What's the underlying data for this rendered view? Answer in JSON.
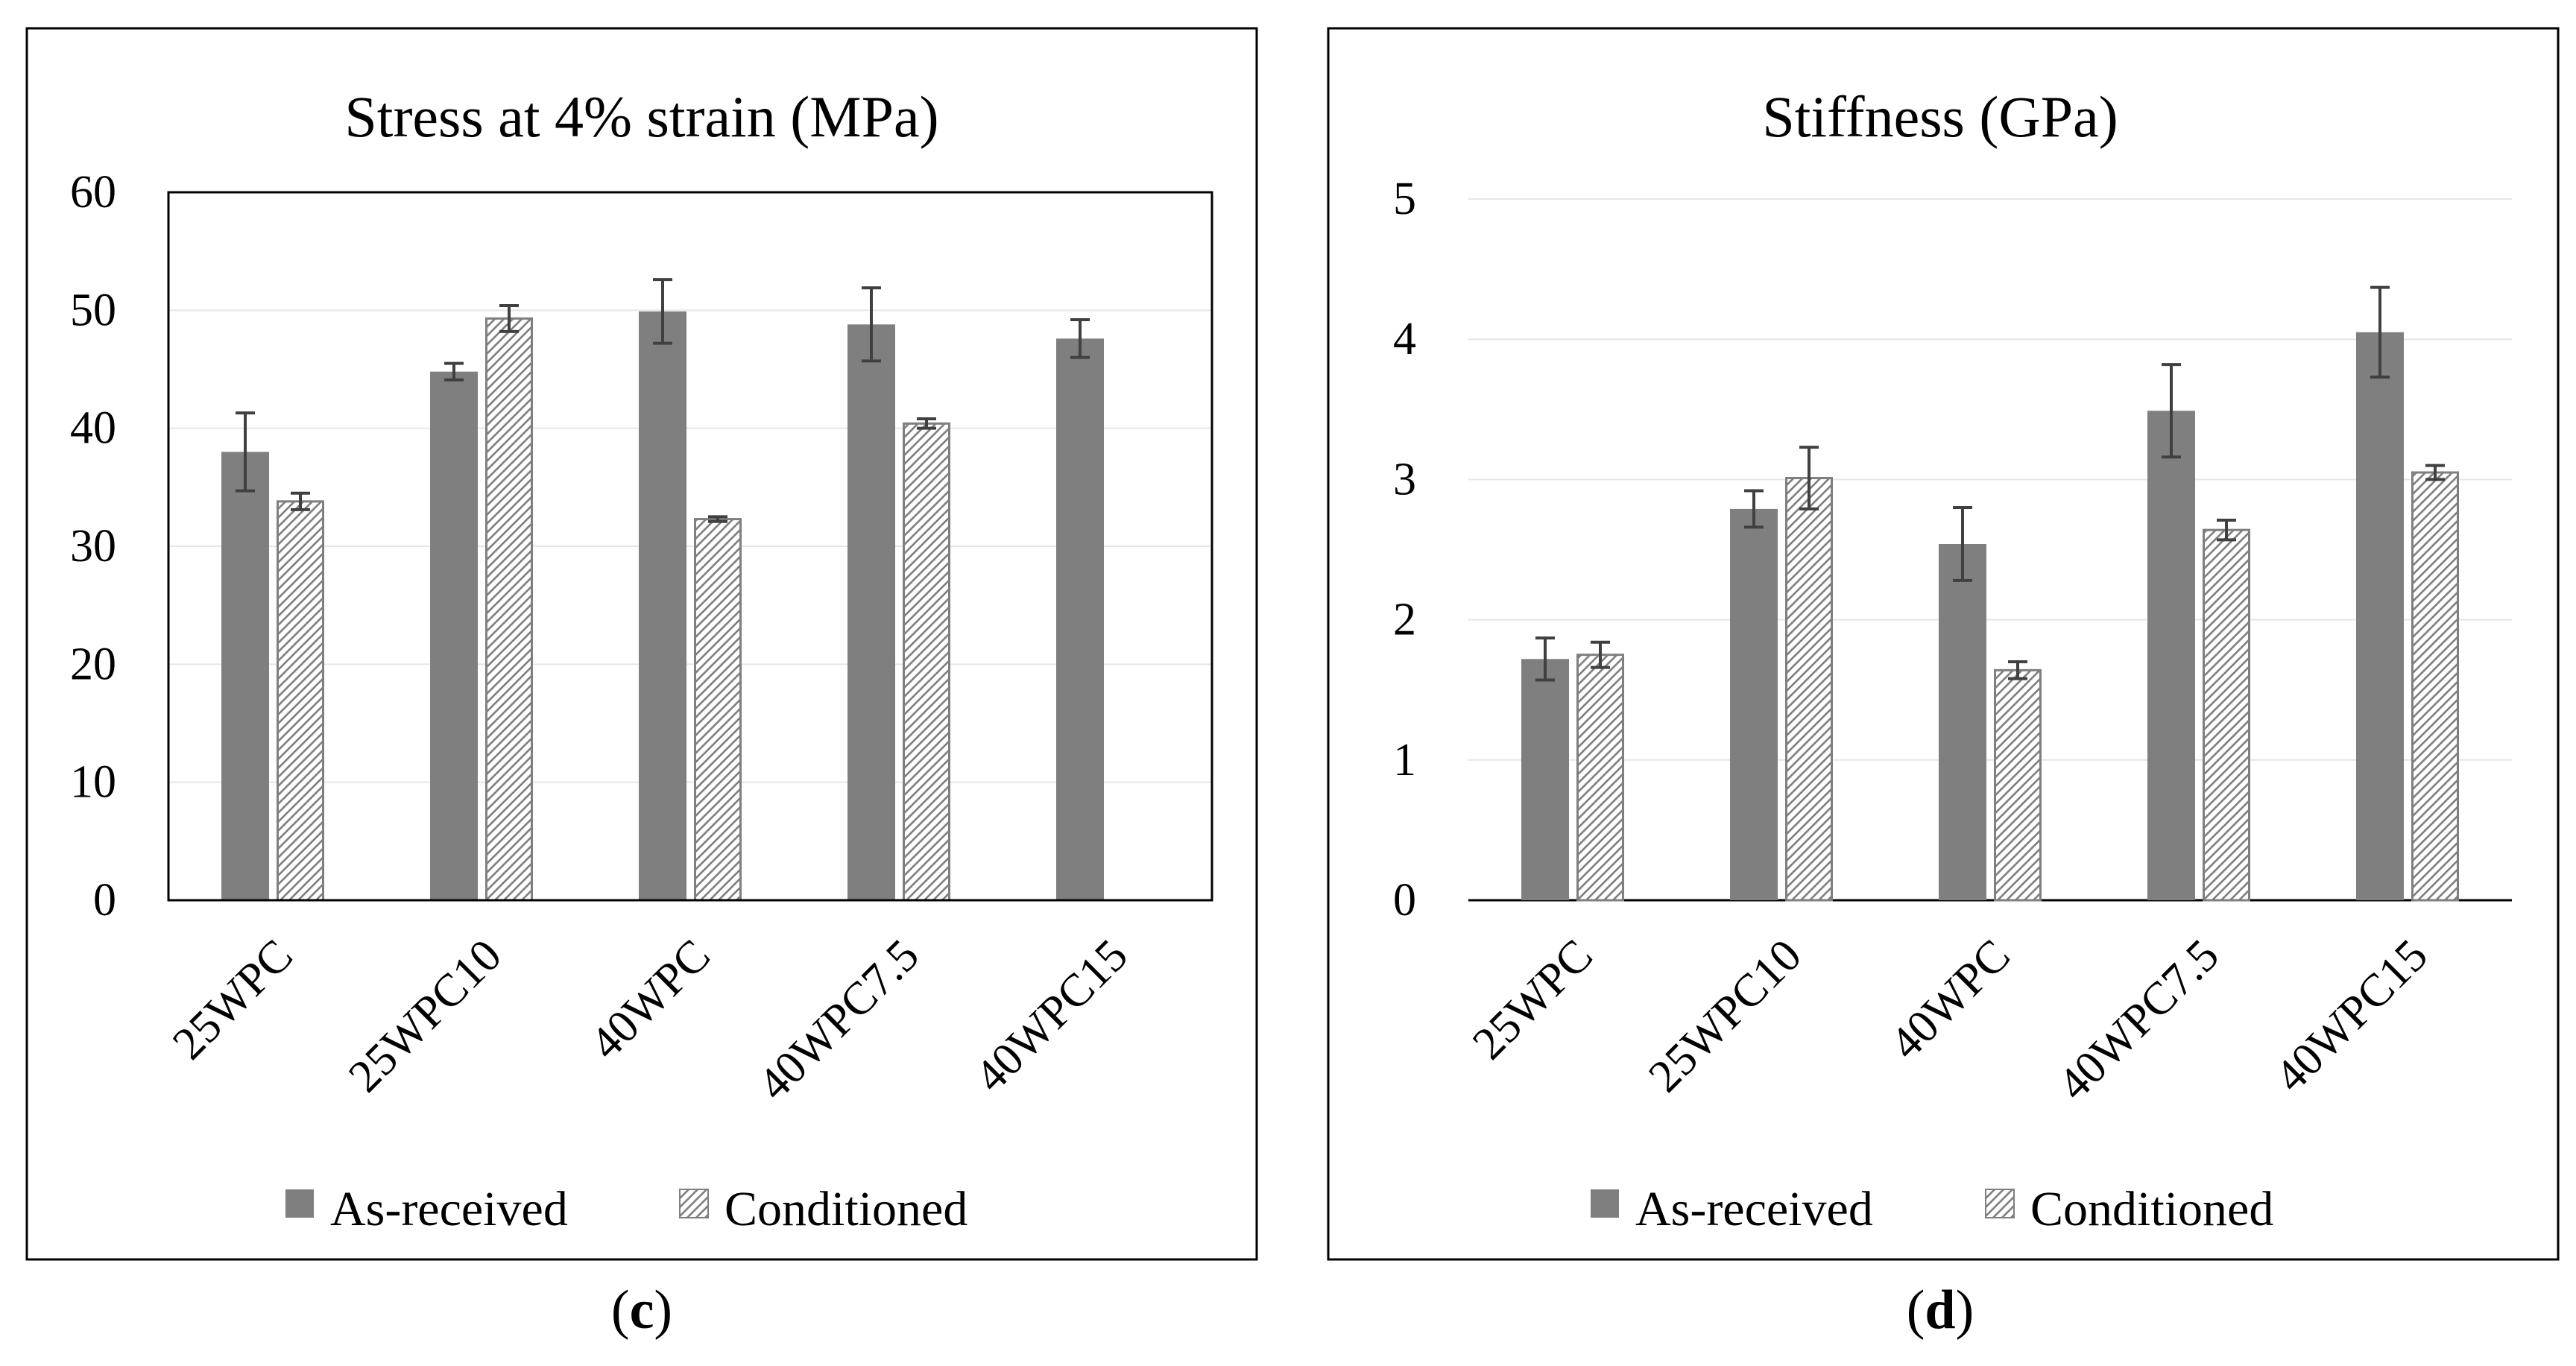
{
  "chart_data": [
    {
      "type": "bar",
      "panel": "c",
      "title": "Stress at 4% strain (MPa)",
      "xlabel": "",
      "ylabel": "",
      "categories": [
        "25WPC",
        "25WPC10",
        "40WPC",
        "40WPC7.5",
        "40WPC15"
      ],
      "ylim": [
        0,
        60
      ],
      "yticks": [
        "0",
        "10",
        "20",
        "30",
        "40",
        "50",
        "60"
      ],
      "grid": true,
      "legend_position": "bottom",
      "series": [
        {
          "name": "As-received",
          "values": [
            38.0,
            44.8,
            49.9,
            48.8,
            47.6
          ],
          "errors": [
            3.3,
            0.7,
            2.7,
            3.1,
            1.6
          ],
          "fill": "solid"
        },
        {
          "name": "Conditioned",
          "values": [
            33.8,
            49.3,
            32.3,
            40.4,
            0
          ],
          "errors": [
            0.7,
            1.1,
            0.2,
            0.4,
            0
          ],
          "fill": "hatched"
        }
      ]
    },
    {
      "type": "bar",
      "panel": "d",
      "title": "Stiffness (GPa)",
      "xlabel": "",
      "ylabel": "",
      "categories": [
        "25WPC",
        "25WPC10",
        "40WPC",
        "40WPC7.5",
        "40WPC15"
      ],
      "ylim": [
        0,
        5
      ],
      "yticks": [
        "0",
        "1",
        "2",
        "3",
        "4",
        "5"
      ],
      "grid": true,
      "legend_position": "bottom",
      "series": [
        {
          "name": "As-received",
          "values": [
            1.72,
            2.79,
            2.54,
            3.49,
            4.05
          ],
          "errors": [
            0.15,
            0.13,
            0.26,
            0.33,
            0.32
          ],
          "fill": "solid"
        },
        {
          "name": "Conditioned",
          "values": [
            1.75,
            3.01,
            1.64,
            2.64,
            3.05
          ],
          "errors": [
            0.09,
            0.22,
            0.06,
            0.07,
            0.05
          ],
          "fill": "hatched"
        }
      ]
    }
  ],
  "captions": {
    "c": {
      "open": "(",
      "letter": "c",
      "close": ")"
    },
    "d": {
      "open": "(",
      "letter": "d",
      "close": ")"
    }
  },
  "colors": {
    "as_received": "#7f7f7f",
    "conditioned_hatch": "#7f7f7f",
    "gridline": "#e6e6e6",
    "axis": "#000000",
    "error_bar": "#404040",
    "frame": "#000000"
  }
}
